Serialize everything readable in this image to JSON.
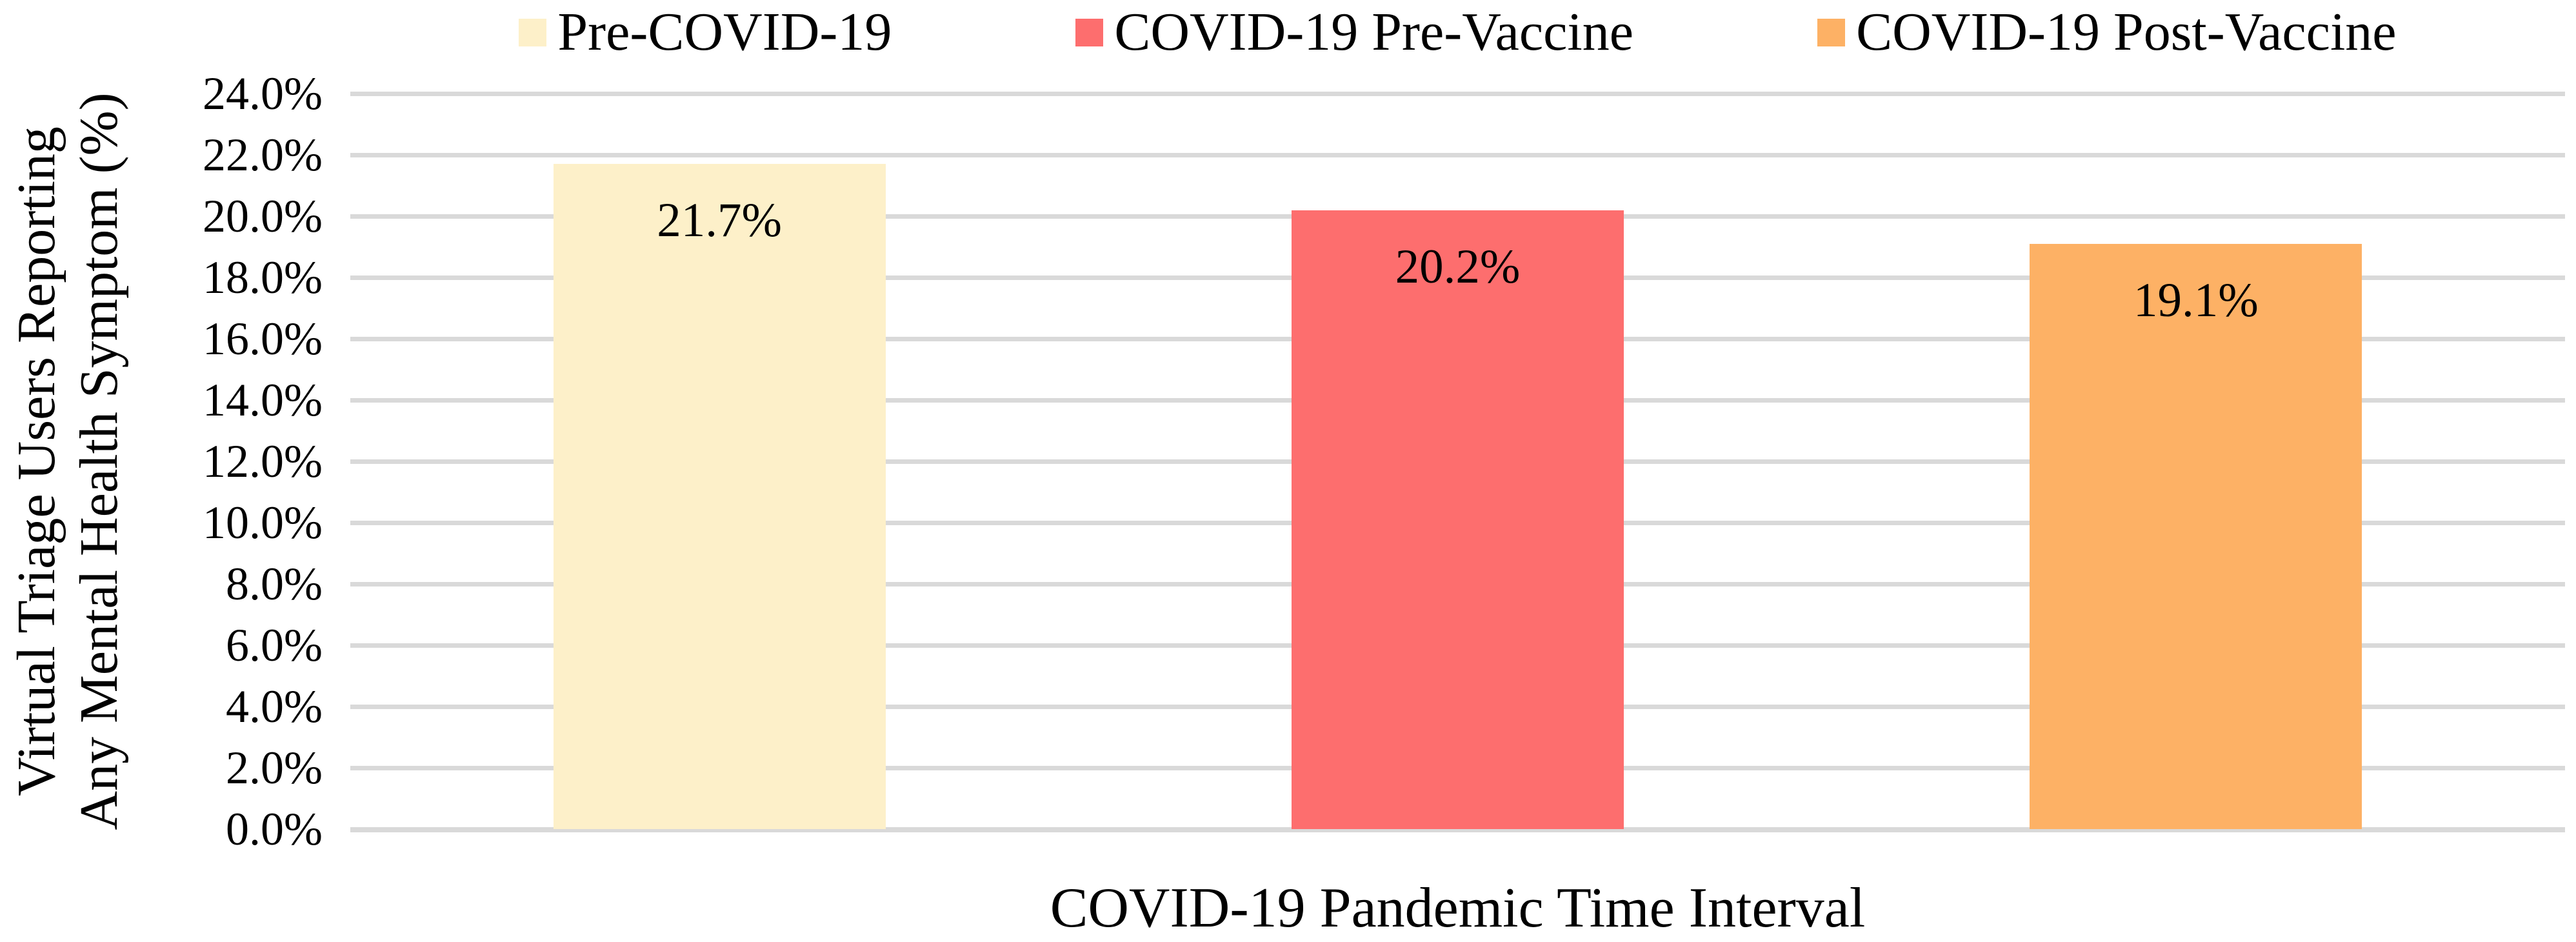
{
  "chart_data": {
    "type": "bar",
    "title": "",
    "xlabel": "COVID-19 Pandemic Time Interval",
    "ylabel_line1": "Virtual Triage Users Reporting",
    "ylabel_line2": "Any Mental Health Symptom (%)",
    "categories": [
      "Pre-COVID-19",
      "COVID-19 Pre-Vaccine",
      "COVID-19 Post-Vaccine"
    ],
    "values": [
      21.7,
      20.2,
      19.1
    ],
    "data_labels": [
      "21.7%",
      "20.2%",
      "19.1%"
    ],
    "bar_colors": [
      "#FDF0C9",
      "#FD6E6E",
      "#FDB165"
    ],
    "ylim": [
      0,
      24
    ],
    "ytick_step": 2,
    "ytick_labels": [
      "0.0%",
      "2.0%",
      "4.0%",
      "6.0%",
      "8.0%",
      "10.0%",
      "12.0%",
      "14.0%",
      "16.0%",
      "18.0%",
      "20.0%",
      "22.0%",
      "24.0%"
    ],
    "grid": "horizontal",
    "gridline_color": "#D9D9D9",
    "legend_position": "top",
    "legend": [
      {
        "label": "Pre-COVID-19",
        "color": "#FDF0C9"
      },
      {
        "label": "COVID-19 Pre-Vaccine",
        "color": "#FD6E6E"
      },
      {
        "label": "COVID-19 Post-Vaccine",
        "color": "#FDB165"
      }
    ]
  }
}
